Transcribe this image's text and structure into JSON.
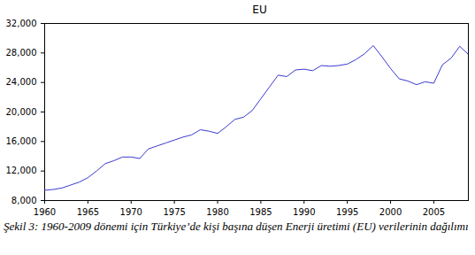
{
  "chart_data": {
    "type": "line",
    "title": "EU",
    "caption": "Şekil 3: 1960-2009 dönemi için Türkiye’de kişi başına düşen Enerji üretimi (EU) verilerinin dağılımı",
    "x": [
      1960,
      1961,
      1962,
      1963,
      1964,
      1965,
      1966,
      1967,
      1968,
      1969,
      1970,
      1971,
      1972,
      1973,
      1974,
      1975,
      1976,
      1977,
      1978,
      1979,
      1980,
      1981,
      1982,
      1983,
      1984,
      1985,
      1986,
      1987,
      1988,
      1989,
      1990,
      1991,
      1992,
      1993,
      1994,
      1995,
      1996,
      1997,
      1998,
      1999,
      2000,
      2001,
      2002,
      2003,
      2004,
      2005,
      2006,
      2007,
      2008,
      2009
    ],
    "values": [
      9400,
      9500,
      9700,
      10100,
      10500,
      11100,
      12000,
      13000,
      13400,
      13900,
      13900,
      13700,
      15000,
      15400,
      15800,
      16200,
      16600,
      16900,
      17600,
      17400,
      17100,
      18000,
      19000,
      19300,
      20200,
      21800,
      23400,
      25000,
      24800,
      25700,
      25800,
      25600,
      26300,
      26200,
      26300,
      26500,
      27100,
      27900,
      29000,
      27500,
      25900,
      24500,
      24200,
      23700,
      24100,
      23900,
      26400,
      27300,
      28900,
      27800
    ],
    "color": "#3a3ad0",
    "xlim": [
      1960,
      2009
    ],
    "xticks": [
      1960,
      1965,
      1970,
      1975,
      1980,
      1985,
      1990,
      1995,
      2000,
      2005
    ],
    "ylim": [
      8000,
      32000
    ],
    "yticks": [
      {
        "value": 8000,
        "label": "8,000"
      },
      {
        "value": 12000,
        "label": "12,000"
      },
      {
        "value": 16000,
        "label": "16,000"
      },
      {
        "value": 20000,
        "label": "20,000"
      },
      {
        "value": 24000,
        "label": "24,000"
      },
      {
        "value": 28000,
        "label": "28,000"
      },
      {
        "value": 32000,
        "label": "32,000"
      }
    ],
    "grid": false
  }
}
